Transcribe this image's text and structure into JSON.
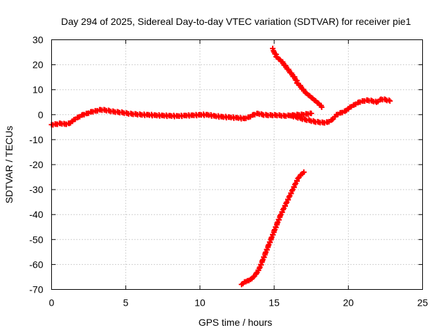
{
  "chart_data": {
    "type": "scatter",
    "title": "Day 294 of 2025, Sidereal Day-to-day VTEC variation (SDTVAR) for receiver pie1",
    "xlabel": "GPS time / hours",
    "ylabel": "SDTVAR / TECUs",
    "xlim": [
      0,
      25
    ],
    "ylim": [
      -70,
      30
    ],
    "x_ticks": [
      0,
      5,
      10,
      15,
      20,
      25
    ],
    "y_ticks": [
      -70,
      -60,
      -50,
      -40,
      -30,
      -20,
      -10,
      0,
      10,
      20,
      30
    ],
    "grid": true,
    "marker": "+",
    "color": "#ff0000",
    "series": [
      {
        "name": "main-trace",
        "x": [
          0.0,
          0.3,
          0.6,
          0.9,
          1.2,
          1.5,
          1.8,
          2.1,
          2.4,
          2.7,
          3.0,
          3.3,
          3.6,
          3.9,
          4.2,
          4.5,
          4.8,
          5.1,
          5.4,
          5.7,
          6.0,
          6.5,
          7.0,
          7.5,
          8.0,
          8.5,
          9.0,
          9.5,
          10.0,
          10.5,
          11.0,
          11.5,
          12.0,
          12.5,
          13.0,
          13.3,
          13.6,
          13.9,
          14.2,
          14.5,
          14.8,
          15.1,
          15.4,
          15.7,
          16.0,
          16.3,
          16.6,
          16.9,
          17.2,
          17.5
        ],
        "values": [
          -4,
          -3.8,
          -3.5,
          -3.8,
          -3.5,
          -2,
          -1,
          0,
          0.5,
          1.2,
          1.5,
          2,
          1.8,
          1.5,
          1.2,
          1,
          0.8,
          0.5,
          0.3,
          0.2,
          0,
          0,
          -0.2,
          -0.3,
          -0.4,
          -0.5,
          -0.3,
          -0.2,
          0,
          0,
          -0.5,
          -0.8,
          -1,
          -1.2,
          -1.5,
          -1,
          0,
          0.5,
          0,
          -0.2,
          -0.2,
          -0.2,
          -0.3,
          -0.5,
          -0.3,
          -0.2,
          0,
          0,
          0.3,
          0.5
        ]
      },
      {
        "name": "upper-arc",
        "x": [
          14.9,
          15.0,
          15.2,
          15.4,
          15.6,
          15.8,
          16.0,
          16.2,
          16.4,
          16.6,
          16.8,
          17.0,
          17.2,
          17.4,
          17.6,
          17.8,
          18.0,
          18.2
        ],
        "values": [
          26.5,
          25,
          23,
          22,
          20.5,
          19,
          17.5,
          16,
          14.5,
          12.5,
          11,
          9.5,
          8.5,
          7.5,
          6.5,
          5.5,
          4.5,
          3
        ]
      },
      {
        "name": "lower-arc",
        "x": [
          12.8,
          13.0,
          13.2,
          13.4,
          13.6,
          13.8,
          14.0,
          14.2,
          14.4,
          14.6,
          14.8,
          15.0,
          15.2,
          15.4,
          15.6,
          15.8,
          16.0,
          16.2,
          16.4,
          16.6,
          16.8,
          17.0
        ],
        "values": [
          -68,
          -67,
          -66.5,
          -66,
          -65,
          -63.5,
          -61.5,
          -58.5,
          -55.5,
          -52.5,
          -49.5,
          -46.5,
          -43.5,
          -40.5,
          -38,
          -35.5,
          -33,
          -30.5,
          -28,
          -25.5,
          -24,
          -23
        ]
      },
      {
        "name": "late-trace",
        "x": [
          16.2,
          16.5,
          16.8,
          17.1,
          17.4,
          17.7,
          18.0,
          18.3,
          18.6,
          18.9,
          19.2,
          19.5,
          19.8,
          20.1,
          20.4,
          20.7,
          21.0,
          21.3,
          21.6,
          21.9,
          22.2,
          22.5,
          22.8
        ],
        "values": [
          -0.5,
          -1,
          -1.5,
          -2,
          -2.3,
          -2.8,
          -3,
          -3.2,
          -3,
          -2,
          0,
          0.8,
          1.5,
          3,
          4,
          5,
          5.5,
          5.8,
          5.5,
          5,
          6.2,
          6,
          5.5
        ]
      }
    ]
  }
}
